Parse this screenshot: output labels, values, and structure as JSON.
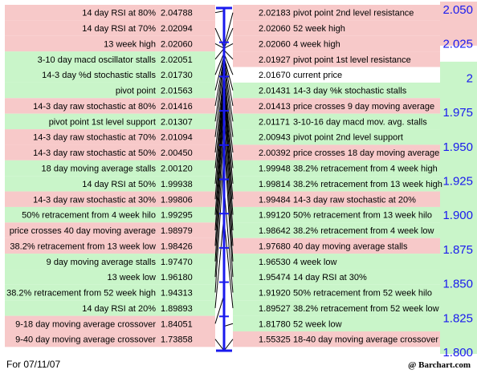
{
  "colors": {
    "resistance_bg": "#f7c9c9",
    "support_bg": "#c9f5c9",
    "current_bg": "#ffffff",
    "axis": "#1a1aee",
    "axis_label": "#1a1aee",
    "line": "#000000"
  },
  "left_rows": [
    {
      "label": "14 day RSI at 80%",
      "value": "2.04788",
      "tone": "red"
    },
    {
      "label": "14 day RSI at 70%",
      "value": "2.02094",
      "tone": "red"
    },
    {
      "label": "13 week high",
      "value": "2.02060",
      "tone": "red"
    },
    {
      "label": "3-10 day macd oscillator stalls",
      "value": "2.02051",
      "tone": "green"
    },
    {
      "label": "14-3 day %d stochastic stalls",
      "value": "2.01730",
      "tone": "green"
    },
    {
      "label": "pivot point",
      "value": "2.01563",
      "tone": "green"
    },
    {
      "label": "14-3 day raw stochastic at 80%",
      "value": "2.01416",
      "tone": "red"
    },
    {
      "label": "pivot point 1st level support",
      "value": "2.01307",
      "tone": "green"
    },
    {
      "label": "14-3 day raw stochastic at 70%",
      "value": "2.01094",
      "tone": "red"
    },
    {
      "label": "14-3 day raw stochastic at 50%",
      "value": "2.00450",
      "tone": "red"
    },
    {
      "label": "18 day moving average stalls",
      "value": "2.00120",
      "tone": "green"
    },
    {
      "label": "14 day RSI at 50%",
      "value": "1.99938",
      "tone": "green"
    },
    {
      "label": "14-3 day raw stochastic at 30%",
      "value": "1.99806",
      "tone": "red"
    },
    {
      "label": "50% retracement from 4 week hilo",
      "value": "1.99295",
      "tone": "green"
    },
    {
      "label": "price crosses 40 day moving average",
      "value": "1.98979",
      "tone": "red"
    },
    {
      "label": "38.2% retracement from 13 week low",
      "value": "1.98426",
      "tone": "red"
    },
    {
      "label": "9 day moving average stalls",
      "value": "1.97470",
      "tone": "green"
    },
    {
      "label": "13 week low",
      "value": "1.96180",
      "tone": "green"
    },
    {
      "label": "38.2% retracement from 52 week high",
      "value": "1.94313",
      "tone": "green"
    },
    {
      "label": "14 day RSI at 20%",
      "value": "1.89893",
      "tone": "green"
    },
    {
      "label": "9-18 day moving average crossover",
      "value": "1.84051",
      "tone": "red"
    },
    {
      "label": "9-40 day moving average crossover",
      "value": "1.73858",
      "tone": "red"
    }
  ],
  "right_rows": [
    {
      "label": "pivot point 2nd level resistance",
      "value": "2.02183",
      "tone": "red"
    },
    {
      "label": "52 week high",
      "value": "2.02060",
      "tone": "red"
    },
    {
      "label": "4 week high",
      "value": "2.02060",
      "tone": "red"
    },
    {
      "label": "pivot point 1st level resistance",
      "value": "2.01927",
      "tone": "red"
    },
    {
      "label": "current price",
      "value": "2.01670",
      "tone": "white"
    },
    {
      "label": "14-3 day %k stochastic stalls",
      "value": "2.01431",
      "tone": "green"
    },
    {
      "label": "price crosses 9 day moving average",
      "value": "2.01413",
      "tone": "red"
    },
    {
      "label": "3-10-16 day macd mov. avg. stalls",
      "value": "2.01171",
      "tone": "green"
    },
    {
      "label": "pivot point 2nd level support",
      "value": "2.00943",
      "tone": "green"
    },
    {
      "label": "price crosses 18 day moving average",
      "value": "2.00392",
      "tone": "red"
    },
    {
      "label": "38.2% retracement from 4 week high",
      "value": "1.99948",
      "tone": "green"
    },
    {
      "label": "38.2% retracement from 13 week high",
      "value": "1.99814",
      "tone": "green"
    },
    {
      "label": "14-3 day raw stochastic at 20%",
      "value": "1.99484",
      "tone": "red"
    },
    {
      "label": "50% retracement from 13 week hilo",
      "value": "1.99120",
      "tone": "green"
    },
    {
      "label": "38.2% retracement from 4 week low",
      "value": "1.98642",
      "tone": "green"
    },
    {
      "label": "40 day moving average stalls",
      "value": "1.97680",
      "tone": "red"
    },
    {
      "label": "4 week low",
      "value": "1.96530",
      "tone": "green"
    },
    {
      "label": "14 day RSI at 30%",
      "value": "1.95474",
      "tone": "green"
    },
    {
      "label": "50% retracement from 52 week hilo",
      "value": "1.91920",
      "tone": "green"
    },
    {
      "label": "38.2% retracement from 52 week low",
      "value": "1.89527",
      "tone": "green"
    },
    {
      "label": "52 week low",
      "value": "1.81780",
      "tone": "green"
    },
    {
      "label": "18-40 day moving average crossover",
      "value": "1.55325",
      "tone": "red"
    }
  ],
  "axis_ticks": [
    "2.050",
    "2.025",
    "2",
    "1.975",
    "1.950",
    "1.925",
    "1.900",
    "1.875",
    "1.850",
    "1.825",
    "1.800"
  ],
  "axis_range": [
    1.8,
    2.05
  ],
  "footer": {
    "date": "For 07/11/07",
    "credit": "@ Barchart.com"
  }
}
